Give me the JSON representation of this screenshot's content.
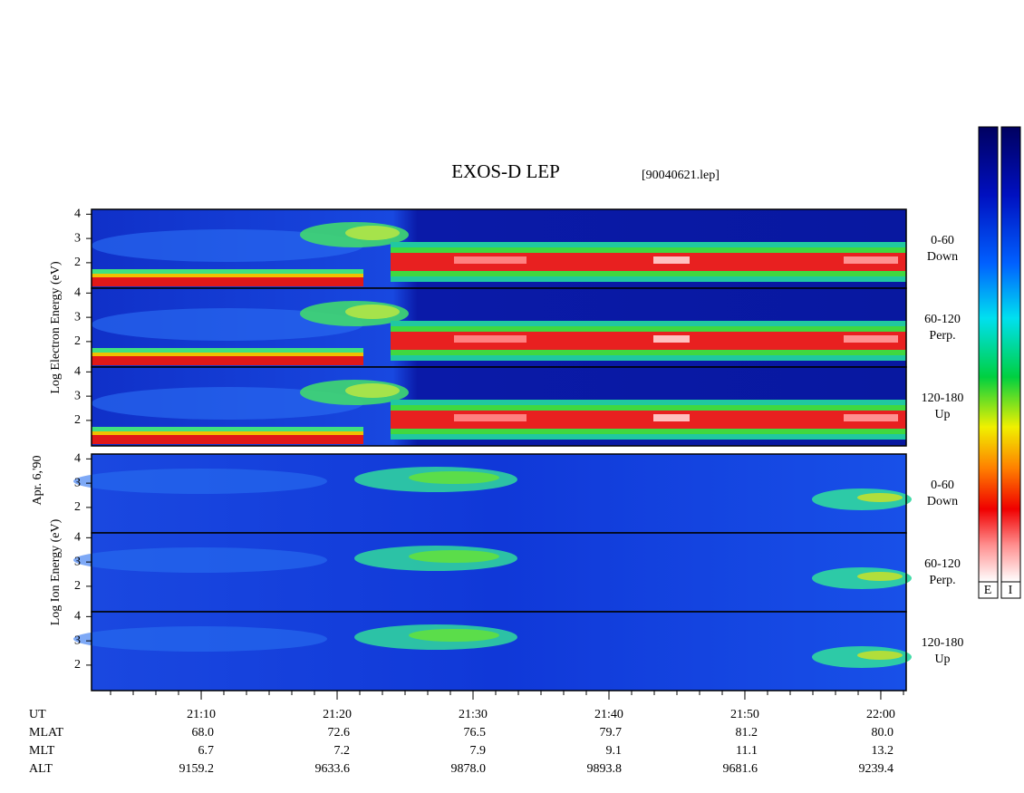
{
  "chart_data": {
    "type": "spectrogram",
    "title": "EXOS-D LEP",
    "file": "[90040621.lep]",
    "date": "Apr. 6,'90",
    "groups": [
      {
        "ylabel": "Log Electron Energy (eV)",
        "panels": [
          {
            "angle": "0-60",
            "direction": "Down"
          },
          {
            "angle": "60-120",
            "direction": "Perp."
          },
          {
            "angle": "120-180",
            "direction": "Up"
          }
        ]
      },
      {
        "ylabel": "Log Ion Energy (eV)",
        "panels": [
          {
            "angle": "0-60",
            "direction": "Down"
          },
          {
            "angle": "60-120",
            "direction": "Perp."
          },
          {
            "angle": "120-180",
            "direction": "Up"
          }
        ]
      }
    ],
    "ylim": [
      0.95,
      4.2
    ],
    "yticks": [
      2,
      3,
      4
    ],
    "xlabel": "UT",
    "xlim": [
      1.93,
      61.87
    ],
    "xticks": [
      {
        "value": 10,
        "label": "21:10"
      },
      {
        "value": 20,
        "label": "21:20"
      },
      {
        "value": 30,
        "label": "21:30"
      },
      {
        "value": 40,
        "label": "21:40"
      },
      {
        "value": 50,
        "label": "21:50"
      },
      {
        "value": 60,
        "label": "22:00"
      }
    ],
    "ephemeris": [
      {
        "name": "MLAT",
        "values": [
          "68.0",
          "72.6",
          "76.5",
          "79.7",
          "81.2",
          "80.0"
        ]
      },
      {
        "name": "MLT",
        "values": [
          "6.7",
          "7.2",
          "7.9",
          "9.1",
          "11.1",
          "13.2"
        ]
      },
      {
        "name": "ALT",
        "values": [
          "9159.2",
          "9633.6",
          "9878.0",
          "9893.8",
          "9681.6",
          "9239.4"
        ]
      }
    ],
    "colorbar_labels": [
      "E",
      "I"
    ]
  }
}
